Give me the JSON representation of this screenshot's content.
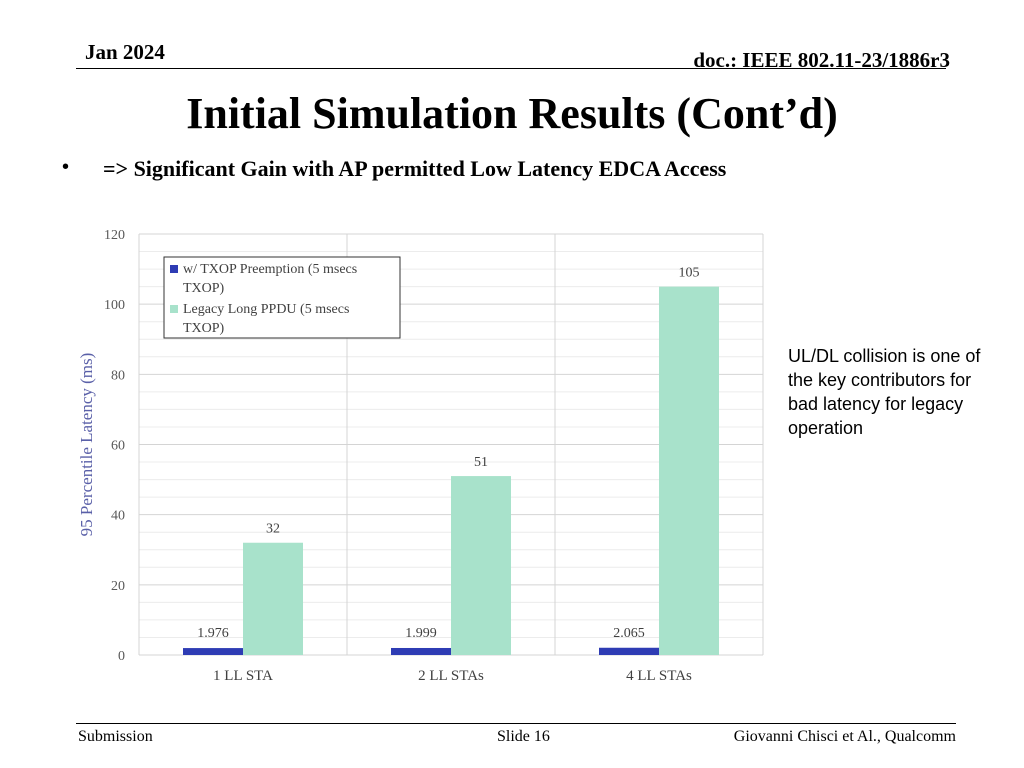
{
  "header": {
    "date": "Jan 2024",
    "doc": "doc.: IEEE 802.11-23/1886r3"
  },
  "slide": {
    "title": "Initial Simulation Results (Cont’d)",
    "bullet_marker": "•",
    "bullet": "=> Significant Gain with AP permitted Low Latency EDCA Access",
    "note": "UL/DL collision is one of the key contributors for bad latency for legacy operation"
  },
  "chart_data": {
    "type": "bar",
    "categories": [
      "1 LL STA",
      "2 LL STAs",
      "4 LL STAs"
    ],
    "series": [
      {
        "name": "w/ TXOP Preemption (5 msecs TXOP)",
        "values": [
          1.976,
          1.999,
          2.065
        ],
        "labels": [
          "1.976",
          "1.999",
          "2.065"
        ],
        "color": "#2e3cb4"
      },
      {
        "name": "Legacy Long PPDU (5 msecs TXOP)",
        "values": [
          32,
          51,
          105
        ],
        "labels": [
          "32",
          "51",
          "105"
        ],
        "color": "#a8e2cb"
      }
    ],
    "ylabel": "95 Percentile Latency (ms)",
    "ylim": [
      0,
      120
    ],
    "yticks": [
      0,
      20,
      40,
      60,
      80,
      100,
      120
    ],
    "grid": true,
    "legend": "top-left"
  },
  "footer": {
    "left": "Submission",
    "center": "Slide 16",
    "right": "Giovanni Chisci et Al., Qualcomm"
  }
}
